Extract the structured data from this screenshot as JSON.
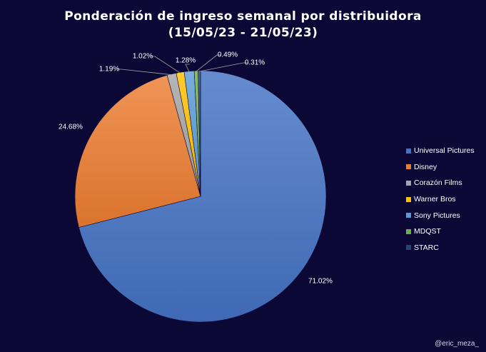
{
  "title_line1": "Ponderación de ingreso semanal por distribuidora",
  "title_line2": "(15/05/23 - 21/05/23)",
  "credit": "@eric_meza_",
  "chart_data": {
    "type": "pie",
    "title": "Ponderación de ingreso semanal por distribuidora (15/05/23 - 21/05/23)",
    "legend_position": "right",
    "start": "12 o'clock, clockwise",
    "slices": [
      {
        "label": "Universal Pictures",
        "value": 71.02,
        "value_label": "71.02%",
        "color": "#4472c4"
      },
      {
        "label": "Disney",
        "value": 24.68,
        "value_label": "24.68%",
        "color": "#ed7d31"
      },
      {
        "label": "Corazón Films",
        "value": 1.19,
        "value_label": "1.19%",
        "color": "#a5a5a5"
      },
      {
        "label": "Warner Bros",
        "value": 1.02,
        "value_label": "1.02%",
        "color": "#ffc000"
      },
      {
        "label": "Sony Pictures",
        "value": 1.28,
        "value_label": "1.28%",
        "color": "#5b9bd5"
      },
      {
        "label": "MDQST",
        "value": 0.49,
        "value_label": "0.49%",
        "color": "#70ad47"
      },
      {
        "label": "STARC",
        "value": 0.31,
        "value_label": "0.31%",
        "color": "#264478"
      }
    ]
  }
}
